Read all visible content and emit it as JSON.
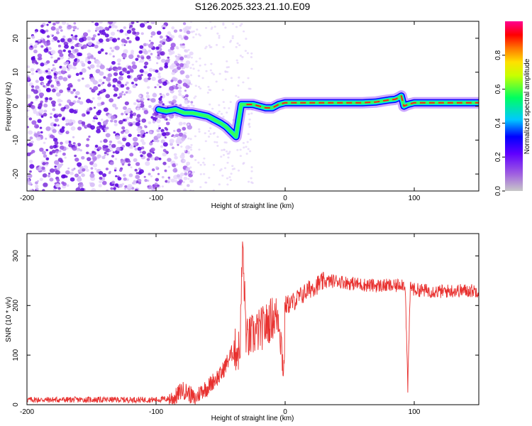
{
  "figure": {
    "title": "S126.2025.323.21.10.E09"
  },
  "colors": {
    "spectrogram_scatter": "#7a2bd9",
    "snr_line": "#e8312f",
    "colorbar_stops": [
      "#c8c8c8",
      "#8a2be2",
      "#0000ff",
      "#00c8ff",
      "#00ff60",
      "#ffe000",
      "#ff7800",
      "#ff0000",
      "#ff00a0"
    ]
  },
  "chart_data": [
    {
      "type": "heatmap",
      "title": "S126.2025.323.21.10.E09",
      "xlabel": "Height of straight line (km)",
      "ylabel": "Frequency (Hz)",
      "xlim": [
        -200,
        150
      ],
      "ylim": [
        -25,
        25
      ],
      "xticks": [
        -200,
        -100,
        0,
        100
      ],
      "yticks": [
        -20,
        -10,
        0,
        10,
        20
      ],
      "colorbar": {
        "label": "Normalized spectral amplitude",
        "range": [
          0,
          1
        ],
        "ticks": [
          0.0,
          0.2,
          0.4,
          0.6,
          0.8
        ]
      },
      "ridge": {
        "x": [
          -98,
          -92,
          -85,
          -78,
          -72,
          -66,
          -60,
          -55,
          -50,
          -46,
          -42,
          -38,
          -34,
          -30,
          -25,
          -20,
          -15,
          -10,
          -5,
          0,
          10,
          20,
          30,
          40,
          50,
          60,
          70,
          75,
          80,
          85,
          88,
          90,
          92,
          95,
          100,
          110,
          120,
          130,
          140,
          150
        ],
        "y": [
          -1,
          -1.5,
          -1,
          -2,
          -2,
          -2.5,
          -3,
          -4,
          -5,
          -6,
          -7.5,
          -9,
          0.5,
          0.5,
          0.5,
          0,
          -0.5,
          -0.5,
          0.5,
          1,
          1,
          1,
          1,
          1,
          1,
          1,
          1.2,
          1.5,
          1.8,
          2,
          2.5,
          3,
          0,
          0.5,
          1,
          1,
          1,
          1,
          1,
          1
        ]
      }
    },
    {
      "type": "line",
      "xlabel": "Height of straight line (km)",
      "ylabel": "SNR (10 * v/v)",
      "xlim": [
        -200,
        150
      ],
      "ylim": [
        0,
        345
      ],
      "xticks": [
        -200,
        -100,
        0,
        100
      ],
      "yticks": [
        0,
        100,
        200,
        300
      ],
      "series": [
        {
          "name": "SNR",
          "x": [
            -200,
            -180,
            -160,
            -140,
            -120,
            -100,
            -90,
            -85,
            -80,
            -75,
            -70,
            -65,
            -60,
            -55,
            -50,
            -45,
            -40,
            -35,
            -33,
            -30,
            -25,
            -20,
            -15,
            -10,
            -5,
            -1,
            0,
            5,
            10,
            15,
            20,
            25,
            30,
            40,
            50,
            60,
            70,
            80,
            85,
            90,
            93,
            95,
            97,
            100,
            110,
            120,
            130,
            140,
            150
          ],
          "y": [
            10,
            10,
            10,
            10,
            10,
            10,
            12,
            15,
            30,
            25,
            10,
            28,
            35,
            50,
            60,
            85,
            110,
            110,
            320,
            130,
            140,
            150,
            160,
            175,
            180,
            65,
            200,
            205,
            215,
            225,
            235,
            242,
            248,
            250,
            245,
            242,
            240,
            240,
            238,
            245,
            240,
            35,
            240,
            232,
            230,
            228,
            230,
            230,
            230
          ]
        }
      ]
    }
  ]
}
